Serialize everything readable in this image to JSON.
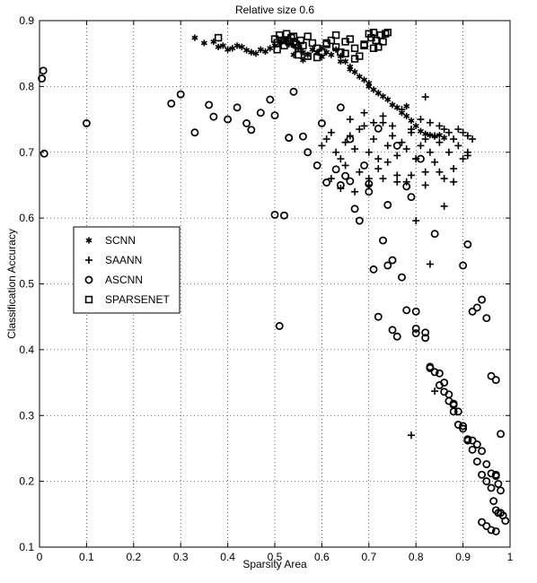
{
  "chart_data": {
    "type": "scatter",
    "title": "Relative size 0.6",
    "xlabel": "Sparsity Area",
    "ylabel": "Classification Accuracy",
    "xlim": [
      0,
      1
    ],
    "ylim": [
      0.1,
      0.9
    ],
    "xticks": [
      "0",
      "0.1",
      "0.2",
      "0.3",
      "0.4",
      "0.5",
      "0.6",
      "0.7",
      "0.8",
      "0.9",
      "1"
    ],
    "yticks": [
      "0.1",
      "0.2",
      "0.3",
      "0.4",
      "0.5",
      "0.6",
      "0.7",
      "0.8",
      "0.9"
    ],
    "grid": true,
    "legend_position": "center-left",
    "series": [
      {
        "name": "SCNN",
        "marker": "asterisk",
        "x": [
          0.33,
          0.35,
          0.37,
          0.38,
          0.39,
          0.4,
          0.41,
          0.42,
          0.43,
          0.44,
          0.45,
          0.46,
          0.47,
          0.48,
          0.49,
          0.5,
          0.51,
          0.52,
          0.53,
          0.54,
          0.55,
          0.56,
          0.57,
          0.58,
          0.59,
          0.6,
          0.61,
          0.62,
          0.63,
          0.64,
          0.65,
          0.66,
          0.67,
          0.68,
          0.69,
          0.7,
          0.71,
          0.72,
          0.73,
          0.74,
          0.75,
          0.76,
          0.77,
          0.78,
          0.79,
          0.8,
          0.81,
          0.82,
          0.83,
          0.84,
          0.85,
          0.86,
          0.56,
          0.6,
          0.64,
          0.66,
          0.54,
          0.7,
          0.72,
          0.78
        ],
        "y": [
          0.874,
          0.866,
          0.868,
          0.86,
          0.862,
          0.856,
          0.858,
          0.862,
          0.86,
          0.855,
          0.852,
          0.85,
          0.856,
          0.853,
          0.858,
          0.862,
          0.866,
          0.87,
          0.864,
          0.862,
          0.858,
          0.852,
          0.848,
          0.856,
          0.852,
          0.858,
          0.852,
          0.848,
          0.856,
          0.846,
          0.838,
          0.83,
          0.822,
          0.815,
          0.81,
          0.8,
          0.795,
          0.79,
          0.785,
          0.78,
          0.772,
          0.768,
          0.76,
          0.755,
          0.748,
          0.74,
          0.732,
          0.728,
          0.726,
          0.724,
          0.726,
          0.722,
          0.84,
          0.845,
          0.838,
          0.826,
          0.848,
          0.805,
          0.79,
          0.77
        ]
      },
      {
        "name": "SAANN",
        "marker": "plus",
        "x": [
          0.6,
          0.61,
          0.62,
          0.63,
          0.64,
          0.65,
          0.66,
          0.67,
          0.68,
          0.69,
          0.7,
          0.71,
          0.72,
          0.73,
          0.74,
          0.75,
          0.76,
          0.77,
          0.78,
          0.79,
          0.8,
          0.81,
          0.82,
          0.83,
          0.84,
          0.85,
          0.86,
          0.87,
          0.88,
          0.89,
          0.9,
          0.91,
          0.92,
          0.65,
          0.68,
          0.7,
          0.72,
          0.74,
          0.76,
          0.78,
          0.8,
          0.82,
          0.84,
          0.86,
          0.88,
          0.9,
          0.91,
          0.66,
          0.69,
          0.71,
          0.73,
          0.75,
          0.77,
          0.79,
          0.81,
          0.83,
          0.85,
          0.87,
          0.89,
          0.62,
          0.64,
          0.67,
          0.7,
          0.73,
          0.76,
          0.79,
          0.82,
          0.85,
          0.88,
          0.82,
          0.8,
          0.86,
          0.83,
          0.79,
          0.84,
          0.91
        ],
        "y": [
          0.71,
          0.72,
          0.73,
          0.7,
          0.69,
          0.715,
          0.725,
          0.705,
          0.735,
          0.74,
          0.7,
          0.72,
          0.69,
          0.745,
          0.71,
          0.725,
          0.695,
          0.715,
          0.705,
          0.73,
          0.69,
          0.71,
          0.72,
          0.7,
          0.725,
          0.715,
          0.735,
          0.7,
          0.72,
          0.71,
          0.73,
          0.695,
          0.72,
          0.68,
          0.67,
          0.66,
          0.675,
          0.685,
          0.665,
          0.655,
          0.69,
          0.67,
          0.685,
          0.66,
          0.675,
          0.69,
          0.7,
          0.75,
          0.76,
          0.745,
          0.755,
          0.74,
          0.765,
          0.735,
          0.75,
          0.745,
          0.74,
          0.73,
          0.735,
          0.66,
          0.645,
          0.64,
          0.65,
          0.66,
          0.655,
          0.665,
          0.65,
          0.67,
          0.655,
          0.784,
          0.596,
          0.618,
          0.53,
          0.27,
          0.337,
          0.725
        ]
      },
      {
        "name": "ASCNN",
        "marker": "circle",
        "x": [
          0.005,
          0.008,
          0.01,
          0.1,
          0.28,
          0.3,
          0.33,
          0.36,
          0.37,
          0.4,
          0.42,
          0.44,
          0.45,
          0.47,
          0.49,
          0.5,
          0.51,
          0.53,
          0.54,
          0.56,
          0.57,
          0.59,
          0.6,
          0.61,
          0.63,
          0.64,
          0.65,
          0.66,
          0.67,
          0.68,
          0.69,
          0.7,
          0.71,
          0.72,
          0.73,
          0.74,
          0.75,
          0.76,
          0.77,
          0.78,
          0.79,
          0.8,
          0.81,
          0.82,
          0.83,
          0.84,
          0.85,
          0.86,
          0.87,
          0.88,
          0.89,
          0.9,
          0.91,
          0.92,
          0.93,
          0.94,
          0.95,
          0.96,
          0.97,
          0.98,
          0.52,
          0.53,
          0.64,
          0.66,
          0.7,
          0.74,
          0.78,
          0.8,
          0.82,
          0.86,
          0.88,
          0.89,
          0.9,
          0.91,
          0.92,
          0.93,
          0.94,
          0.95,
          0.96,
          0.97,
          0.975,
          0.98,
          0.965,
          0.97,
          0.975,
          0.985,
          0.99,
          0.5,
          0.72,
          0.75,
          0.76,
          0.8,
          0.83,
          0.84,
          0.85,
          0.87,
          0.88,
          0.9,
          0.91,
          0.92,
          0.93,
          0.94,
          0.95,
          0.96,
          0.97,
          0.98,
          0.94,
          0.95,
          0.96,
          0.97
        ],
        "y": [
          0.812,
          0.824,
          0.698,
          0.744,
          0.774,
          0.788,
          0.73,
          0.772,
          0.754,
          0.75,
          0.768,
          0.744,
          0.734,
          0.76,
          0.78,
          0.756,
          0.436,
          0.722,
          0.792,
          0.724,
          0.7,
          0.68,
          0.744,
          0.654,
          0.674,
          0.65,
          0.664,
          0.72,
          0.614,
          0.596,
          0.68,
          0.652,
          0.522,
          0.736,
          0.566,
          0.528,
          0.536,
          0.71,
          0.51,
          0.46,
          0.632,
          0.432,
          0.69,
          0.418,
          0.374,
          0.576,
          0.364,
          0.35,
          0.332,
          0.318,
          0.306,
          0.528,
          0.56,
          0.458,
          0.464,
          0.476,
          0.448,
          0.36,
          0.354,
          0.272,
          0.604,
          0.722,
          0.768,
          0.656,
          0.64,
          0.62,
          0.648,
          0.458,
          0.426,
          0.336,
          0.316,
          0.286,
          0.28,
          0.264,
          0.262,
          0.256,
          0.246,
          0.226,
          0.212,
          0.208,
          0.196,
          0.186,
          0.17,
          0.156,
          0.152,
          0.148,
          0.14,
          0.605,
          0.45,
          0.43,
          0.42,
          0.425,
          0.372,
          0.366,
          0.346,
          0.322,
          0.306,
          0.284,
          0.262,
          0.248,
          0.23,
          0.21,
          0.2,
          0.19,
          0.21,
          0.152,
          0.138,
          0.132,
          0.126,
          0.124
        ]
      },
      {
        "name": "SPARSENET",
        "marker": "square",
        "x": [
          0.5,
          0.505,
          0.51,
          0.515,
          0.52,
          0.525,
          0.53,
          0.535,
          0.54,
          0.545,
          0.55,
          0.555,
          0.56,
          0.57,
          0.58,
          0.59,
          0.6,
          0.61,
          0.62,
          0.63,
          0.64,
          0.65,
          0.66,
          0.67,
          0.68,
          0.69,
          0.7,
          0.705,
          0.71,
          0.715,
          0.72,
          0.725,
          0.73,
          0.735,
          0.74,
          0.38,
          0.55,
          0.57,
          0.59,
          0.61,
          0.63,
          0.65,
          0.67,
          0.69,
          0.71,
          0.505,
          0.52,
          0.54
        ],
        "y": [
          0.872,
          0.866,
          0.878,
          0.87,
          0.862,
          0.88,
          0.868,
          0.874,
          0.876,
          0.864,
          0.858,
          0.87,
          0.862,
          0.876,
          0.866,
          0.858,
          0.852,
          0.864,
          0.87,
          0.86,
          0.852,
          0.868,
          0.872,
          0.858,
          0.846,
          0.862,
          0.88,
          0.874,
          0.882,
          0.87,
          0.86,
          0.878,
          0.868,
          0.88,
          0.882,
          0.874,
          0.848,
          0.846,
          0.844,
          0.866,
          0.878,
          0.85,
          0.842,
          0.864,
          0.858,
          0.856,
          0.87,
          0.868
        ]
      }
    ]
  }
}
